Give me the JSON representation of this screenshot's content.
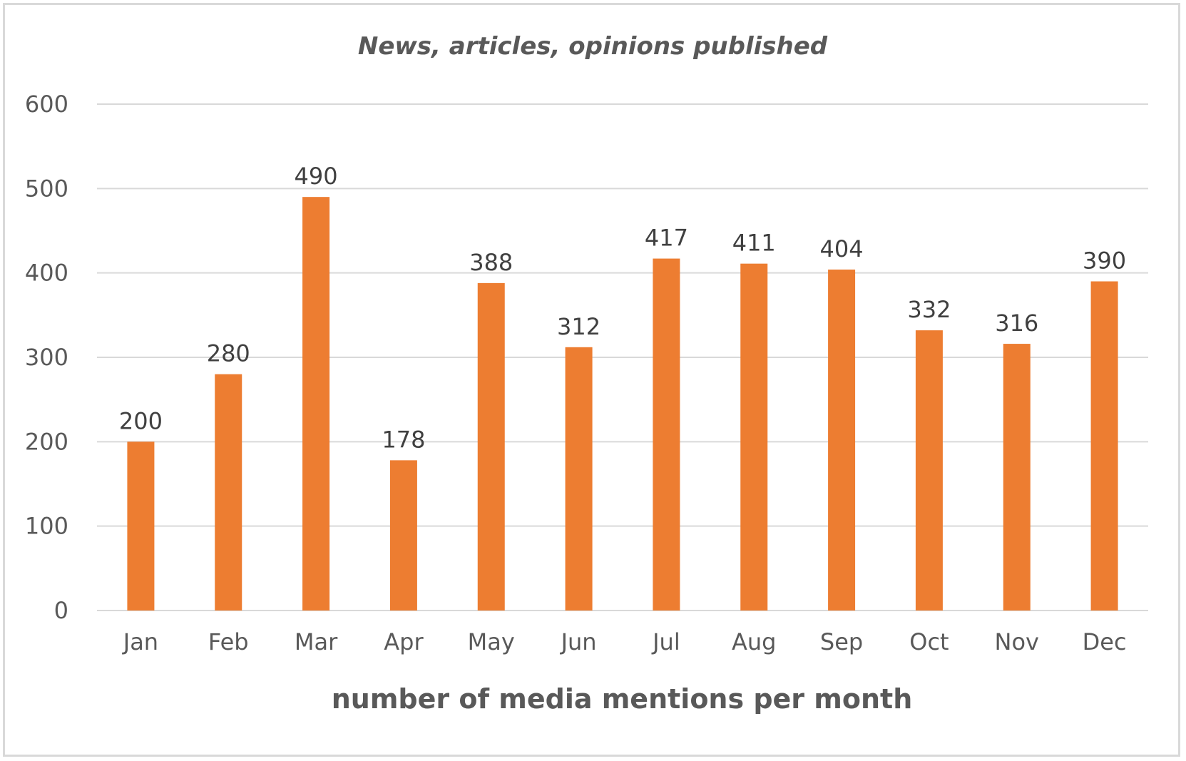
{
  "chart_data": {
    "type": "bar",
    "title": "News, articles, opinions published",
    "xlabel": "number of media mentions per month",
    "ylabel": "",
    "categories": [
      "Jan",
      "Feb",
      "Mar",
      "Apr",
      "May",
      "Jun",
      "Jul",
      "Aug",
      "Sep",
      "Oct",
      "Nov",
      "Dec"
    ],
    "values": [
      200,
      280,
      490,
      178,
      388,
      312,
      417,
      411,
      404,
      332,
      316,
      390
    ],
    "ylim": [
      0,
      600
    ],
    "yticks": [
      0,
      100,
      200,
      300,
      400,
      500,
      600
    ],
    "grid": true,
    "legend": "none",
    "data_labels": true,
    "bar_color": "#ed7d31",
    "grid_color": "#d9d9d9",
    "text_color": "#595959"
  }
}
